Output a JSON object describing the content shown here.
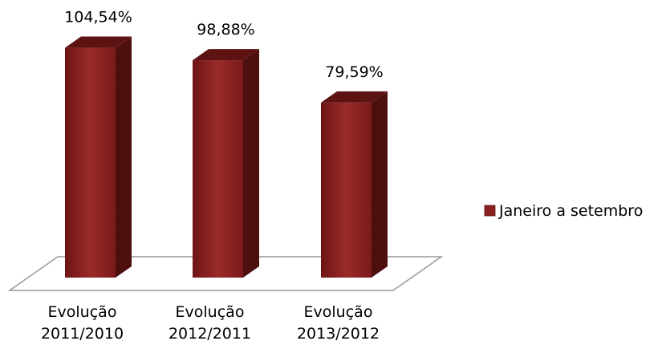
{
  "chart_data": {
    "type": "bar",
    "title": "",
    "xlabel": "",
    "ylabel": "",
    "categories": [
      [
        "Evolução",
        "2011/2010"
      ],
      [
        "Evolução",
        "2012/2011"
      ],
      [
        "Evolução",
        "2013/2012"
      ]
    ],
    "series": [
      {
        "name": "Janeiro a setembro",
        "values": [
          104.54,
          98.88,
          79.59
        ],
        "value_labels": [
          "104,54%",
          "98,88%",
          "79,59%"
        ],
        "color": "#8b2020"
      }
    ],
    "ylim": [
      0,
      120
    ],
    "grid": false,
    "legend": "right",
    "style": "3d-column"
  }
}
